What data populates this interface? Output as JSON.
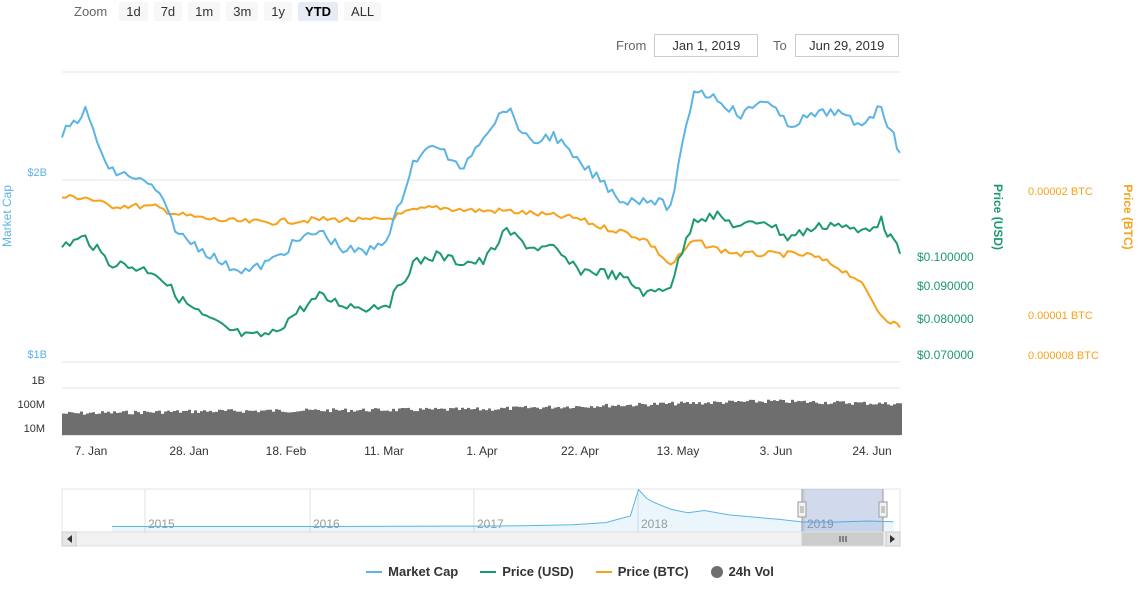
{
  "zoom": {
    "label": "Zoom",
    "buttons": [
      "1d",
      "7d",
      "1m",
      "3m",
      "1y",
      "YTD",
      "ALL"
    ],
    "active": "YTD"
  },
  "range": {
    "from_label": "From",
    "from_value": "Jan 1, 2019",
    "to_label": "To",
    "to_value": "Jun 29, 2019"
  },
  "colors": {
    "market_cap": "#5cb4e4",
    "price_usd": "#1c9a6b",
    "price_btc": "#f7a21b",
    "volume": "#6e6e6e"
  },
  "chart_data": {
    "type": "line",
    "x_range": [
      "2019-01-01",
      "2019-06-29"
    ],
    "x_ticks": [
      "7. Jan",
      "28. Jan",
      "18. Feb",
      "11. Mar",
      "1. Apr",
      "22. Apr",
      "13. May",
      "3. Jun",
      "24. Jun"
    ],
    "axes": {
      "market_cap": {
        "label": "Market Cap",
        "ticks": [
          "$2B",
          "$1B"
        ],
        "range": [
          1000000000,
          2000000000
        ]
      },
      "price_usd": {
        "label": "Price (USD)",
        "ticks": [
          "$0.100000",
          "$0.090000",
          "$0.080000",
          "$0.070000"
        ],
        "range": [
          0.067,
          0.126
        ]
      },
      "price_btc": {
        "label": "Price (BTC)",
        "ticks": [
          "0.00002 BTC",
          "0.00001 BTC",
          "0.000008 BTC"
        ],
        "range": [
          7.7e-06,
          2.1e-05
        ]
      },
      "volume": {
        "ticks": [
          "1B",
          "100M",
          "10M"
        ],
        "scale": "log"
      }
    },
    "series": [
      {
        "name": "Market Cap",
        "x": [
          "2019-01-01",
          "2019-01-06",
          "2019-01-11",
          "2019-01-16",
          "2019-01-21",
          "2019-01-26",
          "2019-01-31",
          "2019-02-05",
          "2019-02-10",
          "2019-02-15",
          "2019-02-20",
          "2019-02-25",
          "2019-03-02",
          "2019-03-07",
          "2019-03-12",
          "2019-03-17",
          "2019-03-22",
          "2019-03-27",
          "2019-04-01",
          "2019-04-06",
          "2019-04-11",
          "2019-04-16",
          "2019-04-21",
          "2019-04-26",
          "2019-05-01",
          "2019-05-06",
          "2019-05-11",
          "2019-05-16",
          "2019-05-21",
          "2019-05-26",
          "2019-05-31",
          "2019-06-05",
          "2019-06-10",
          "2019-06-15",
          "2019-06-20",
          "2019-06-25",
          "2019-06-29"
        ],
        "values": [
          2250000000,
          2380000000,
          2050000000,
          2020000000,
          1950000000,
          1700000000,
          1620000000,
          1530000000,
          1500000000,
          1560000000,
          1660000000,
          1720000000,
          1620000000,
          1600000000,
          1700000000,
          2100000000,
          2200000000,
          2050000000,
          2250000000,
          2400000000,
          2200000000,
          2250000000,
          2100000000,
          2000000000,
          1880000000,
          1900000000,
          1850000000,
          2500000000,
          2450000000,
          2350000000,
          2450000000,
          2300000000,
          2350000000,
          2380000000,
          2300000000,
          2400000000,
          2150000000
        ]
      },
      {
        "name": "Price (USD)",
        "x": [
          "2019-01-01",
          "2019-01-06",
          "2019-01-11",
          "2019-01-16",
          "2019-01-21",
          "2019-01-26",
          "2019-01-31",
          "2019-02-05",
          "2019-02-10",
          "2019-02-15",
          "2019-02-20",
          "2019-02-25",
          "2019-03-02",
          "2019-03-07",
          "2019-03-12",
          "2019-03-17",
          "2019-03-22",
          "2019-03-27",
          "2019-04-01",
          "2019-04-06",
          "2019-04-11",
          "2019-04-16",
          "2019-04-21",
          "2019-04-26",
          "2019-05-01",
          "2019-05-06",
          "2019-05-11",
          "2019-05-16",
          "2019-05-21",
          "2019-05-26",
          "2019-05-31",
          "2019-06-05",
          "2019-06-10",
          "2019-06-15",
          "2019-06-20",
          "2019-06-25",
          "2019-06-29"
        ],
        "values": [
          0.1035,
          0.106,
          0.0985,
          0.097,
          0.0955,
          0.0875,
          0.082,
          0.078,
          0.0755,
          0.0765,
          0.083,
          0.088,
          0.0855,
          0.0845,
          0.086,
          0.098,
          0.1005,
          0.0985,
          0.0985,
          0.108,
          0.103,
          0.1025,
          0.096,
          0.0955,
          0.0935,
          0.0885,
          0.0915,
          0.112,
          0.1125,
          0.109,
          0.1115,
          0.106,
          0.1085,
          0.1105,
          0.1075,
          0.111,
          0.101
        ]
      },
      {
        "name": "Price (BTC)",
        "x": [
          "2019-01-01",
          "2019-01-06",
          "2019-01-11",
          "2019-01-16",
          "2019-01-21",
          "2019-01-26",
          "2019-01-31",
          "2019-02-05",
          "2019-02-10",
          "2019-02-15",
          "2019-02-20",
          "2019-02-25",
          "2019-03-02",
          "2019-03-07",
          "2019-03-12",
          "2019-03-17",
          "2019-03-22",
          "2019-03-27",
          "2019-04-01",
          "2019-04-06",
          "2019-04-11",
          "2019-04-16",
          "2019-04-21",
          "2019-04-26",
          "2019-05-01",
          "2019-05-06",
          "2019-05-11",
          "2019-05-16",
          "2019-05-21",
          "2019-05-26",
          "2019-05-31",
          "2019-06-05",
          "2019-06-10",
          "2019-06-15",
          "2019-06-20",
          "2019-06-25",
          "2019-06-29"
        ],
        "values": [
          1.95e-05,
          1.95e-05,
          1.88e-05,
          1.88e-05,
          1.87e-05,
          1.81e-05,
          1.78e-05,
          1.76e-05,
          1.75e-05,
          1.75e-05,
          1.76e-05,
          1.77e-05,
          1.77e-05,
          1.76e-05,
          1.78e-05,
          1.84e-05,
          1.87e-05,
          1.85e-05,
          1.84e-05,
          1.84e-05,
          1.82e-05,
          1.8e-05,
          1.78e-05,
          1.71e-05,
          1.67e-05,
          1.6e-05,
          1.4e-05,
          1.6e-05,
          1.53e-05,
          1.49e-05,
          1.49e-05,
          1.49e-05,
          1.48e-05,
          1.4e-05,
          1.29e-05,
          1e-05,
          9e-06
        ]
      },
      {
        "name": "24h Vol",
        "x": [
          "2019-01-01",
          "2019-02-01",
          "2019-03-01",
          "2019-04-01",
          "2019-05-01",
          "2019-06-01",
          "2019-06-29"
        ],
        "values": [
          40000000,
          50000000,
          55000000,
          60000000,
          90000000,
          130000000,
          100000000
        ]
      }
    ],
    "navigator": {
      "year_labels": [
        "2015",
        "2016",
        "2017",
        "2018",
        "2019"
      ],
      "x": [
        2014.8,
        2015.5,
        2016.0,
        2016.5,
        2017.0,
        2017.3,
        2017.6,
        2017.8,
        2017.95,
        2018.0,
        2018.05,
        2018.1,
        2018.2,
        2018.3,
        2018.4,
        2018.55,
        2018.7,
        2018.85,
        2019.0,
        2019.2,
        2019.4,
        2019.55
      ],
      "values": [
        0.05,
        0.05,
        0.05,
        0.06,
        0.08,
        0.12,
        0.2,
        0.4,
        1.0,
        3.4,
        2.6,
        2.2,
        1.6,
        1.3,
        1.5,
        1.1,
        0.9,
        0.7,
        0.45,
        0.45,
        0.55,
        0.48
      ]
    }
  },
  "legend": [
    {
      "label": "Market Cap",
      "key": "market_cap",
      "shape": "line"
    },
    {
      "label": "Price (USD)",
      "key": "price_usd",
      "shape": "line"
    },
    {
      "label": "Price (BTC)",
      "key": "price_btc",
      "shape": "line"
    },
    {
      "label": "24h Vol",
      "key": "volume",
      "shape": "dot"
    }
  ],
  "navigator_scroll": {
    "grip_icon": "grip-icon",
    "left_icon": "left-arrow-icon",
    "right_icon": "right-arrow-icon"
  }
}
